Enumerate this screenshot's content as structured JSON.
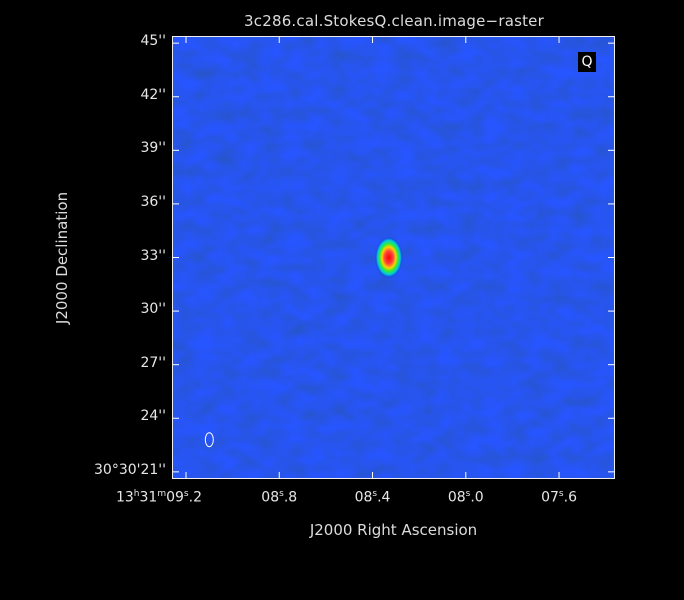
{
  "chart_data": {
    "type": "heatmap",
    "title": "3c286.cal.StokesQ.clean.image−raster",
    "xlabel": "J2000 Right Ascension",
    "ylabel": "J2000 Declination",
    "stokes_label": "Q",
    "colormap": "rainbow",
    "background_color": "#0a16c8",
    "x_ticks": [
      {
        "h": "13",
        "m": "31",
        "s": "09",
        "f": ".2",
        "ra_s": 9.2
      },
      {
        "s": "08",
        "f": ".8",
        "ra_s": 8.8
      },
      {
        "s": "08",
        "f": ".4",
        "ra_s": 8.4
      },
      {
        "s": "08",
        "f": ".0",
        "ra_s": 8.0
      },
      {
        "s": "07",
        "f": ".6",
        "ra_s": 7.6
      }
    ],
    "y_ticks": [
      {
        "label": "30°30'21''",
        "arcsec": 21
      },
      {
        "label": "24''",
        "arcsec": 24
      },
      {
        "label": "27''",
        "arcsec": 27
      },
      {
        "label": "30''",
        "arcsec": 30
      },
      {
        "label": "33''",
        "arcsec": 33
      },
      {
        "label": "36''",
        "arcsec": 36
      },
      {
        "label": "39''",
        "arcsec": 39
      },
      {
        "label": "42''",
        "arcsec": 42
      },
      {
        "label": "45''",
        "arcsec": 45
      }
    ],
    "x_range_ra_seconds": [
      9.26,
      7.36
    ],
    "y_range_arcsec": [
      20.6,
      45.4
    ],
    "source": {
      "ra_s": 8.33,
      "dec_arcsec": 33.0
    },
    "beam": {
      "ra_s": 9.1,
      "dec_arcsec": 22.8
    }
  }
}
